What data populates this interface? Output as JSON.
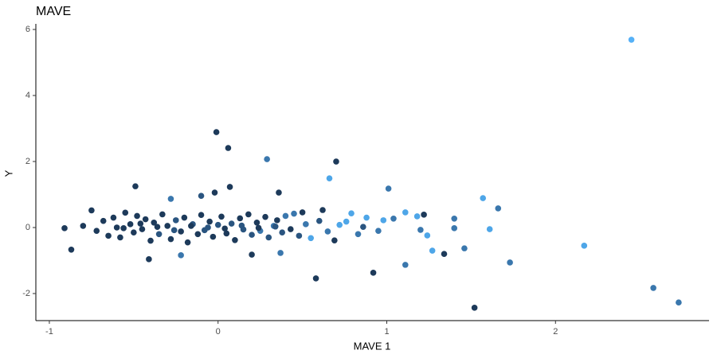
{
  "chart_data": {
    "type": "scatter",
    "title": "MAVE",
    "x_label": "MAVE 1",
    "y_label": "Y",
    "xlim": [
      -1.08,
      2.91
    ],
    "ylim": [
      -2.82,
      6.17
    ],
    "xticks": [
      -1,
      0,
      1,
      2
    ],
    "yticks": [
      -2,
      0,
      2,
      4,
      6
    ],
    "series": [
      {
        "name": "MAVE",
        "x": [
          2.45,
          -0.01,
          0.06,
          0.29,
          0.7,
          0.66,
          1.01,
          0.36,
          0.07,
          -0.49,
          -0.28,
          -0.02,
          -0.1,
          1.57,
          1.66,
          -0.91,
          -0.87,
          -0.41,
          -0.22,
          0.2,
          0.37,
          0.58,
          0.92,
          1.11,
          1.34,
          1.27,
          1.46,
          1.73,
          1.52,
          2.17,
          2.58,
          2.73,
          1.61,
          1.4,
          1.4,
          1.18,
          1.11,
          1.22,
          1.2,
          1.24,
          1.04,
          0.79,
          0.86,
          0.69,
          0.62,
          0.5,
          -0.8,
          -0.75,
          -0.72,
          -0.68,
          -0.65,
          -0.62,
          -0.6,
          -0.58,
          -0.55,
          -0.52,
          -0.5,
          -0.48,
          -0.45,
          -0.43,
          -0.4,
          -0.38,
          -0.35,
          -0.33,
          -0.3,
          -0.28,
          -0.25,
          -0.22,
          -0.2,
          -0.18,
          -0.15,
          -0.12,
          -0.1,
          -0.08,
          -0.05,
          -0.03,
          0.0,
          0.02,
          0.05,
          0.08,
          0.1,
          0.13,
          0.15,
          0.18,
          0.2,
          0.23,
          0.25,
          0.28,
          0.3,
          0.33,
          0.35,
          0.38,
          0.4,
          0.43,
          0.45,
          0.48,
          0.52,
          0.55,
          0.6,
          0.65,
          0.72,
          0.76,
          0.83,
          0.88,
          0.95,
          0.98,
          -0.56,
          -0.46,
          -0.36,
          -0.26,
          -0.16,
          -0.06,
          0.04,
          0.14,
          0.24,
          0.34
        ],
        "y": [
          5.69,
          2.89,
          2.41,
          2.07,
          2.0,
          1.49,
          1.18,
          1.06,
          1.23,
          1.25,
          0.87,
          1.06,
          0.96,
          0.89,
          0.58,
          -0.02,
          -0.67,
          -0.96,
          -0.84,
          -0.82,
          -0.77,
          -1.54,
          -1.37,
          -1.13,
          -0.8,
          -0.7,
          -0.63,
          -1.06,
          -2.43,
          -0.55,
          -1.83,
          -2.27,
          -0.05,
          0.27,
          -0.02,
          0.34,
          0.46,
          0.39,
          -0.07,
          -0.24,
          0.27,
          0.43,
          0.02,
          -0.39,
          0.53,
          0.46,
          0.05,
          0.52,
          -0.1,
          0.2,
          -0.25,
          0.3,
          0.0,
          -0.3,
          0.45,
          0.1,
          -0.15,
          0.35,
          -0.05,
          0.25,
          -0.4,
          0.15,
          -0.2,
          0.4,
          0.05,
          -0.35,
          0.22,
          -0.12,
          0.3,
          -0.45,
          0.1,
          -0.2,
          0.38,
          -0.08,
          0.18,
          -0.28,
          0.08,
          0.33,
          -0.18,
          0.12,
          -0.38,
          0.28,
          -0.06,
          0.4,
          -0.22,
          0.15,
          -0.1,
          0.32,
          -0.3,
          0.05,
          0.22,
          -0.15,
          0.35,
          -0.05,
          0.42,
          -0.25,
          0.1,
          -0.32,
          0.2,
          -0.12,
          0.08,
          0.18,
          -0.2,
          0.3,
          -0.1,
          0.22,
          -0.02,
          0.12,
          0.02,
          -0.08,
          0.05,
          0.0,
          -0.03,
          0.06,
          -0.01,
          0.03
        ],
        "colors": [
          "#56b1f7",
          "#1d3a5a",
          "#1d3a5a",
          "#3a77ad",
          "#1d3a5a",
          "#4ea6e8",
          "#3a77ad",
          "#1d3a5a",
          "#1d3a5a",
          "#1d3a5a",
          "#3a77ad",
          "#1d3a5a",
          "#2a5580",
          "#4ea6e8",
          "#3a77ad",
          "#1d3a5a",
          "#1d3a5a",
          "#1d3a5a",
          "#3a77ad",
          "#1d3a5a",
          "#3a77ad",
          "#1d3a5a",
          "#1d3a5a",
          "#3a77ad",
          "#1d3a5a",
          "#4ea6e8",
          "#3a77ad",
          "#3a77ad",
          "#1d3a5a",
          "#4ea6e8",
          "#3a77ad",
          "#3a77ad",
          "#4ea6e8",
          "#3a77ad",
          "#3a77ad",
          "#4ea6e8",
          "#4ea6e8",
          "#1d3a5a",
          "#3a77ad",
          "#4ea6e8",
          "#3a77ad",
          "#4ea6e8",
          "#2a5580",
          "#1d3a5a",
          "#1d3a5a",
          "#1d3a5a",
          "#1d3a5a",
          "#1d3a5a",
          "#1d3a5a",
          "#1d3a5a",
          "#1d3a5a",
          "#1d3a5a",
          "#1d3a5a",
          "#1d3a5a",
          "#1d3a5a",
          "#1d3a5a",
          "#1d3a5a",
          "#1d3a5a",
          "#1d3a5a",
          "#1d3a5a",
          "#1d3a5a",
          "#1d3a5a",
          "#2a5580",
          "#1d3a5a",
          "#1d3a5a",
          "#1d3a5a",
          "#2a5580",
          "#1d3a5a",
          "#1d3a5a",
          "#1d3a5a",
          "#2a5580",
          "#1d3a5a",
          "#1d3a5a",
          "#2a5580",
          "#1d3a5a",
          "#1d3a5a",
          "#2a5580",
          "#1d3a5a",
          "#1d3a5a",
          "#2a5580",
          "#1d3a5a",
          "#1d3a5a",
          "#2a5580",
          "#1d3a5a",
          "#2a5580",
          "#1d3a5a",
          "#3a77ad",
          "#1d3a5a",
          "#2a5580",
          "#3a77ad",
          "#1d3a5a",
          "#2a5580",
          "#3a77ad",
          "#1d3a5a",
          "#3a77ad",
          "#2a5580",
          "#3a77ad",
          "#4ea6e8",
          "#2a5580",
          "#3a77ad",
          "#4ea6e8",
          "#4ea6e8",
          "#3a77ad",
          "#4ea6e8",
          "#3a77ad",
          "#4ea6e8",
          "#1d3a5a",
          "#1d3a5a",
          "#1d3a5a",
          "#2a5580",
          "#1d3a5a",
          "#2a5580",
          "#1d3a5a",
          "#2a5580",
          "#1d3a5a",
          "#2a5580"
        ]
      }
    ]
  }
}
